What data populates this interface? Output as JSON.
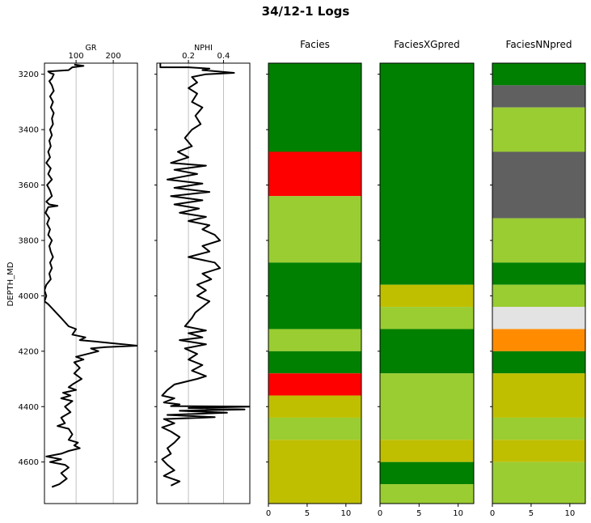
{
  "chart_data": {
    "title": "34/12-1 Logs",
    "ylabel": "DEPTH_MD",
    "ylim": [
      4750,
      3160
    ],
    "yticks": [
      3200,
      3400,
      3600,
      3800,
      4000,
      4200,
      4400,
      4600
    ],
    "facies_colors": {
      "green": "#008000",
      "red": "#ff0000",
      "yellowgreen": "#9acd32",
      "olive": "#bfbf00",
      "gray": "#606060",
      "lightgray": "#e3e3e3",
      "orange": "#ff8c00"
    },
    "tracks": [
      {
        "name": "GR",
        "type": "line",
        "xlim": [
          15,
          265
        ],
        "xticks": [
          100,
          200
        ],
        "grid": true,
        "points": [
          [
            95,
            3165
          ],
          [
            120,
            3170
          ],
          [
            90,
            3175
          ],
          [
            80,
            3185
          ],
          [
            25,
            3190
          ],
          [
            30,
            3195
          ],
          [
            40,
            3200
          ],
          [
            35,
            3215
          ],
          [
            28,
            3225
          ],
          [
            35,
            3240
          ],
          [
            40,
            3260
          ],
          [
            30,
            3280
          ],
          [
            38,
            3300
          ],
          [
            32,
            3320
          ],
          [
            40,
            3340
          ],
          [
            35,
            3360
          ],
          [
            38,
            3380
          ],
          [
            30,
            3400
          ],
          [
            35,
            3420
          ],
          [
            28,
            3440
          ],
          [
            32,
            3460
          ],
          [
            25,
            3480
          ],
          [
            30,
            3500
          ],
          [
            20,
            3520
          ],
          [
            32,
            3540
          ],
          [
            25,
            3560
          ],
          [
            35,
            3580
          ],
          [
            22,
            3600
          ],
          [
            30,
            3620
          ],
          [
            35,
            3640
          ],
          [
            20,
            3660
          ],
          [
            28,
            3670
          ],
          [
            50,
            3675
          ],
          [
            25,
            3680
          ],
          [
            18,
            3700
          ],
          [
            28,
            3720
          ],
          [
            22,
            3740
          ],
          [
            30,
            3760
          ],
          [
            25,
            3780
          ],
          [
            35,
            3800
          ],
          [
            28,
            3820
          ],
          [
            32,
            3840
          ],
          [
            38,
            3860
          ],
          [
            30,
            3880
          ],
          [
            35,
            3900
          ],
          [
            28,
            3920
          ],
          [
            32,
            3940
          ],
          [
            20,
            3960
          ],
          [
            15,
            3980
          ],
          [
            20,
            4000
          ],
          [
            15,
            4020
          ],
          [
            25,
            4030
          ],
          [
            60,
            4080
          ],
          [
            80,
            4110
          ],
          [
            100,
            4120
          ],
          [
            90,
            4140
          ],
          [
            125,
            4150
          ],
          [
            110,
            4160
          ],
          [
            150,
            4165
          ],
          [
            190,
            4170
          ],
          [
            265,
            4180
          ],
          [
            180,
            4185
          ],
          [
            140,
            4190
          ],
          [
            160,
            4200
          ],
          [
            100,
            4220
          ],
          [
            120,
            4230
          ],
          [
            95,
            4240
          ],
          [
            110,
            4260
          ],
          [
            95,
            4280
          ],
          [
            115,
            4300
          ],
          [
            90,
            4320
          ],
          [
            80,
            4330
          ],
          [
            100,
            4340
          ],
          [
            65,
            4350
          ],
          [
            85,
            4360
          ],
          [
            60,
            4370
          ],
          [
            90,
            4380
          ],
          [
            70,
            4400
          ],
          [
            85,
            4420
          ],
          [
            60,
            4440
          ],
          [
            70,
            4460
          ],
          [
            50,
            4470
          ],
          [
            80,
            4480
          ],
          [
            90,
            4500
          ],
          [
            80,
            4520
          ],
          [
            105,
            4530
          ],
          [
            95,
            4540
          ],
          [
            110,
            4550
          ],
          [
            80,
            4560
          ],
          [
            60,
            4570
          ],
          [
            20,
            4580
          ],
          [
            60,
            4590
          ],
          [
            30,
            4600
          ],
          [
            70,
            4610
          ],
          [
            80,
            4620
          ],
          [
            60,
            4640
          ],
          [
            75,
            4660
          ],
          [
            55,
            4680
          ],
          [
            35,
            4690
          ]
        ]
      },
      {
        "name": "NPHI",
        "type": "line",
        "xlim": [
          0.02,
          0.55
        ],
        "xticks": [
          0.2,
          0.4
        ],
        "grid": true,
        "points": [
          [
            0.04,
            3160
          ],
          [
            0.04,
            3175
          ],
          [
            0.2,
            3175
          ],
          [
            0.32,
            3180
          ],
          [
            0.28,
            3185
          ],
          [
            0.46,
            3195
          ],
          [
            0.3,
            3200
          ],
          [
            0.22,
            3210
          ],
          [
            0.25,
            3230
          ],
          [
            0.2,
            3250
          ],
          [
            0.25,
            3270
          ],
          [
            0.22,
            3300
          ],
          [
            0.28,
            3320
          ],
          [
            0.24,
            3350
          ],
          [
            0.27,
            3380
          ],
          [
            0.22,
            3400
          ],
          [
            0.18,
            3430
          ],
          [
            0.22,
            3460
          ],
          [
            0.14,
            3480
          ],
          [
            0.2,
            3500
          ],
          [
            0.1,
            3520
          ],
          [
            0.3,
            3530
          ],
          [
            0.12,
            3545
          ],
          [
            0.25,
            3560
          ],
          [
            0.08,
            3580
          ],
          [
            0.28,
            3595
          ],
          [
            0.12,
            3610
          ],
          [
            0.32,
            3625
          ],
          [
            0.1,
            3640
          ],
          [
            0.28,
            3655
          ],
          [
            0.12,
            3670
          ],
          [
            0.26,
            3685
          ],
          [
            0.15,
            3700
          ],
          [
            0.3,
            3715
          ],
          [
            0.2,
            3730
          ],
          [
            0.32,
            3745
          ],
          [
            0.28,
            3760
          ],
          [
            0.35,
            3780
          ],
          [
            0.38,
            3800
          ],
          [
            0.28,
            3820
          ],
          [
            0.32,
            3840
          ],
          [
            0.2,
            3860
          ],
          [
            0.35,
            3880
          ],
          [
            0.38,
            3900
          ],
          [
            0.28,
            3920
          ],
          [
            0.33,
            3940
          ],
          [
            0.25,
            3960
          ],
          [
            0.3,
            3980
          ],
          [
            0.25,
            4000
          ],
          [
            0.32,
            4020
          ],
          [
            0.28,
            4040
          ],
          [
            0.24,
            4060
          ],
          [
            0.22,
            4080
          ],
          [
            0.18,
            4110
          ],
          [
            0.3,
            4125
          ],
          [
            0.2,
            4135
          ],
          [
            0.28,
            4150
          ],
          [
            0.15,
            4160
          ],
          [
            0.3,
            4175
          ],
          [
            0.18,
            4190
          ],
          [
            0.25,
            4210
          ],
          [
            0.2,
            4230
          ],
          [
            0.28,
            4250
          ],
          [
            0.22,
            4270
          ],
          [
            0.3,
            4290
          ],
          [
            0.25,
            4300
          ],
          [
            0.12,
            4320
          ],
          [
            0.08,
            4340
          ],
          [
            0.05,
            4360
          ],
          [
            0.12,
            4370
          ],
          [
            0.06,
            4385
          ],
          [
            0.15,
            4392
          ],
          [
            0.1,
            4398
          ],
          [
            0.55,
            4400
          ],
          [
            0.2,
            4405
          ],
          [
            0.52,
            4410
          ],
          [
            0.15,
            4415
          ],
          [
            0.42,
            4422
          ],
          [
            0.08,
            4430
          ],
          [
            0.35,
            4438
          ],
          [
            0.06,
            4445
          ],
          [
            0.12,
            4460
          ],
          [
            0.05,
            4475
          ],
          [
            0.1,
            4490
          ],
          [
            0.15,
            4510
          ],
          [
            0.12,
            4530
          ],
          [
            0.08,
            4550
          ],
          [
            0.1,
            4570
          ],
          [
            0.05,
            4590
          ],
          [
            0.08,
            4610
          ],
          [
            0.12,
            4630
          ],
          [
            0.06,
            4650
          ],
          [
            0.15,
            4670
          ],
          [
            0.1,
            4685
          ]
        ]
      },
      {
        "name": "Facies",
        "type": "facies",
        "xlim": [
          0,
          12
        ],
        "xticks": [
          0,
          5,
          10
        ],
        "intervals": [
          {
            "top": 3160,
            "base": 3480,
            "color": "green"
          },
          {
            "top": 3480,
            "base": 3640,
            "color": "red"
          },
          {
            "top": 3640,
            "base": 3880,
            "color": "yellowgreen"
          },
          {
            "top": 3880,
            "base": 4120,
            "color": "green"
          },
          {
            "top": 4120,
            "base": 4200,
            "color": "yellowgreen"
          },
          {
            "top": 4200,
            "base": 4280,
            "color": "green"
          },
          {
            "top": 4280,
            "base": 4360,
            "color": "red"
          },
          {
            "top": 4360,
            "base": 4440,
            "color": "olive"
          },
          {
            "top": 4440,
            "base": 4520,
            "color": "yellowgreen"
          },
          {
            "top": 4520,
            "base": 4750,
            "color": "olive"
          }
        ]
      },
      {
        "name": "FaciesXGpred",
        "type": "facies",
        "xlim": [
          0,
          12
        ],
        "xticks": [
          0,
          5,
          10
        ],
        "intervals": [
          {
            "top": 3160,
            "base": 3960,
            "color": "green"
          },
          {
            "top": 3960,
            "base": 4040,
            "color": "olive"
          },
          {
            "top": 4040,
            "base": 4120,
            "color": "yellowgreen"
          },
          {
            "top": 4120,
            "base": 4280,
            "color": "green"
          },
          {
            "top": 4280,
            "base": 4520,
            "color": "yellowgreen"
          },
          {
            "top": 4520,
            "base": 4600,
            "color": "olive"
          },
          {
            "top": 4600,
            "base": 4680,
            "color": "green"
          },
          {
            "top": 4680,
            "base": 4750,
            "color": "yellowgreen"
          }
        ]
      },
      {
        "name": "FaciesNNpred",
        "type": "facies",
        "xlim": [
          0,
          12
        ],
        "xticks": [
          0,
          5,
          10
        ],
        "intervals": [
          {
            "top": 3160,
            "base": 3240,
            "color": "green"
          },
          {
            "top": 3240,
            "base": 3320,
            "color": "gray"
          },
          {
            "top": 3320,
            "base": 3480,
            "color": "yellowgreen"
          },
          {
            "top": 3480,
            "base": 3720,
            "color": "gray"
          },
          {
            "top": 3720,
            "base": 3880,
            "color": "yellowgreen"
          },
          {
            "top": 3880,
            "base": 3960,
            "color": "green"
          },
          {
            "top": 3960,
            "base": 4040,
            "color": "yellowgreen"
          },
          {
            "top": 4040,
            "base": 4120,
            "color": "lightgray"
          },
          {
            "top": 4120,
            "base": 4200,
            "color": "orange"
          },
          {
            "top": 4200,
            "base": 4280,
            "color": "green"
          },
          {
            "top": 4280,
            "base": 4440,
            "color": "olive"
          },
          {
            "top": 4440,
            "base": 4520,
            "color": "yellowgreen"
          },
          {
            "top": 4520,
            "base": 4600,
            "color": "olive"
          },
          {
            "top": 4600,
            "base": 4750,
            "color": "yellowgreen"
          }
        ]
      }
    ]
  }
}
